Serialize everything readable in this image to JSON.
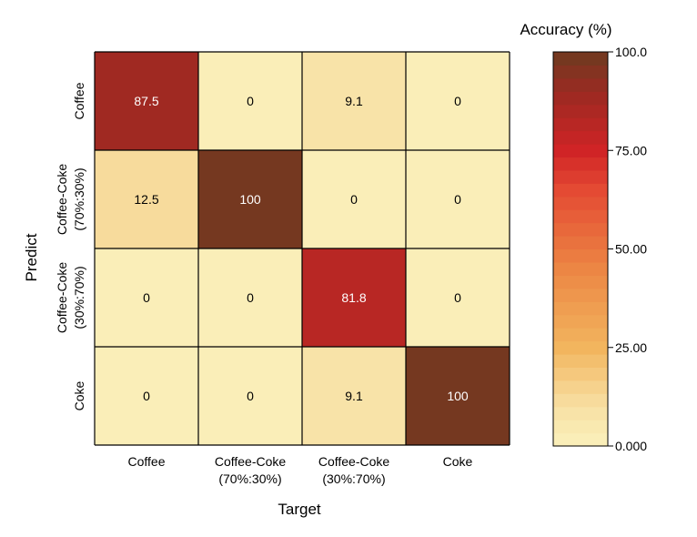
{
  "chart_data": {
    "type": "heatmap",
    "title": "",
    "xlabel": "Target",
    "ylabel": "Predict",
    "x_categories": [
      [
        "Coffee"
      ],
      [
        "Coffee-Coke",
        "(70%:30%)"
      ],
      [
        "Coffee-Coke",
        "(30%:70%)"
      ],
      [
        "Coke"
      ]
    ],
    "y_categories": [
      [
        "Coffee"
      ],
      [
        "Coffee-Coke",
        "(70%:30%)"
      ],
      [
        "Coffee-Coke",
        "(30%:70%)"
      ],
      [
        "Coke"
      ]
    ],
    "values": [
      [
        87.5,
        0,
        9.1,
        0
      ],
      [
        12.5,
        100,
        0,
        0
      ],
      [
        0,
        0,
        81.8,
        0
      ],
      [
        0,
        0,
        9.1,
        100
      ]
    ],
    "value_labels": [
      [
        "87.5",
        "0",
        "9.1",
        "0"
      ],
      [
        "12.5",
        "100",
        "0",
        "0"
      ],
      [
        "0",
        "0",
        "81.8",
        "0"
      ],
      [
        "0",
        "0",
        "9.1",
        "100"
      ]
    ],
    "colorbar": {
      "title": "Accuracy (%)",
      "range": [
        0,
        100
      ],
      "ticks": [
        {
          "value": 100,
          "label": "100.0"
        },
        {
          "value": 75,
          "label": "75.00"
        },
        {
          "value": 50,
          "label": "50.00"
        },
        {
          "value": 25,
          "label": "25.00"
        },
        {
          "value": 0,
          "label": "0.000"
        }
      ],
      "colormap_stops": [
        {
          "value": 0,
          "color": "#faf1bc"
        },
        {
          "value": 10,
          "color": "#f8e0a4"
        },
        {
          "value": 25,
          "color": "#f2b55e"
        },
        {
          "value": 45,
          "color": "#ec8644"
        },
        {
          "value": 65,
          "color": "#e44a33"
        },
        {
          "value": 75,
          "color": "#d02426"
        },
        {
          "value": 90,
          "color": "#9a2a22"
        },
        {
          "value": 100,
          "color": "#6e3b20"
        }
      ],
      "levels": 30
    },
    "light_text_color": "#ffffff",
    "dark_text_color": "#000000",
    "grid_color": "#000000"
  }
}
